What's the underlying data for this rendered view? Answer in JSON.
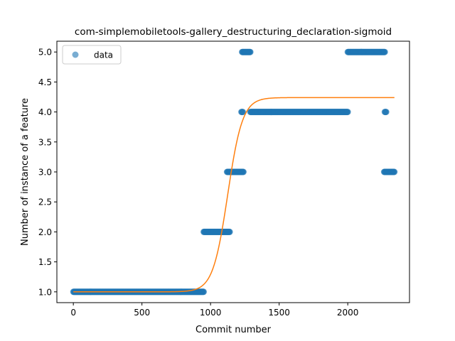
{
  "chart_data": {
    "type": "scatter",
    "title": "com-simplemobiletools-gallery_destructuring_declaration-sigmoid",
    "xlabel": "Commit number",
    "ylabel": "Number of instance of a feature",
    "xlim": [
      -120,
      2450
    ],
    "ylim": [
      0.82,
      5.18
    ],
    "xticks": [
      0,
      500,
      1000,
      1500,
      2000
    ],
    "yticks": [
      1.0,
      1.5,
      2.0,
      2.5,
      3.0,
      3.5,
      4.0,
      4.5,
      5.0
    ],
    "legend": {
      "position": "top-left",
      "entries": [
        "data"
      ]
    },
    "grid": false,
    "colors": {
      "data": "#1f77b4",
      "fit": "#ff7f0e"
    },
    "series": [
      {
        "name": "data",
        "kind": "points",
        "segments": [
          {
            "x_start": 0,
            "x_end": 950,
            "y": 1.0
          },
          {
            "x_start": 950,
            "x_end": 1140,
            "y": 2.0
          },
          {
            "x_start": 1120,
            "x_end": 1240,
            "y": 3.0
          },
          {
            "x_start": 1225,
            "x_end": 1235,
            "y": 4.0
          },
          {
            "x_start": 1230,
            "x_end": 1290,
            "y": 5.0
          },
          {
            "x_start": 1290,
            "x_end": 2000,
            "y": 4.0
          },
          {
            "x_start": 2000,
            "x_end": 2270,
            "y": 5.0
          },
          {
            "x_start": 2270,
            "x_end": 2280,
            "y": 4.0
          },
          {
            "x_start": 2265,
            "x_end": 2340,
            "y": 3.0
          }
        ]
      },
      {
        "kind": "sigmoid-fit",
        "x_range": [
          0,
          2340
        ],
        "lower": 1.0,
        "upper": 4.24,
        "midpoint": 1125,
        "steepness": 0.0185
      }
    ]
  }
}
